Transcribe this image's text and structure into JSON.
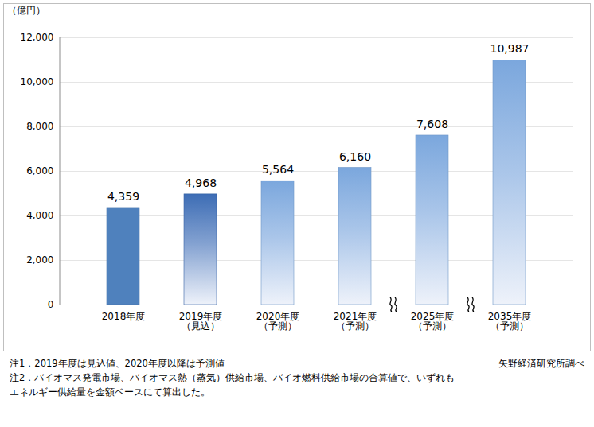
{
  "chart_data": {
    "type": "bar",
    "y_label": "（億円）",
    "categories": [
      "2018年度",
      "2019年度\n（見込）",
      "2020年度\n（予測）",
      "2021年度\n（予測）",
      "2025年度\n（予測）",
      "2035年度\n（予測）"
    ],
    "values": [
      4359,
      4968,
      5564,
      6160,
      7608,
      10987
    ],
    "value_labels": [
      "4,359",
      "4,968",
      "5,564",
      "6,160",
      "7,608",
      "10,987"
    ],
    "colors": [
      "#4f81bd",
      "#3d6db5",
      "#7ba7dd",
      "#7ba7dd",
      "#7ba7dd",
      "#7ba7dd"
    ],
    "ylim": [
      0,
      12000
    ],
    "yticks": [
      0,
      {
        "value": 2000,
        "label": "2,000"
      },
      {
        "value": 4000,
        "label": "4,000"
      },
      {
        "value": 6000,
        "label": "6,000"
      },
      {
        "value": 8000,
        "label": "8,000"
      },
      {
        "value": 10000,
        "label": "10,000"
      },
      {
        "value": 12000,
        "label": "12,000"
      }
    ],
    "grid": true,
    "data_labels": true,
    "notes": [
      "注1．2019年度は見込値、2020年度以降は予測値",
      "注2．バイオマス発電市場、バイオマス熱（蒸気）供給市場、バイオ燃料供給市場の合算値で、いずれもエネルギー供給量を金額ベースにて算出した。"
    ],
    "source": "矢野経済研究所調べ"
  }
}
